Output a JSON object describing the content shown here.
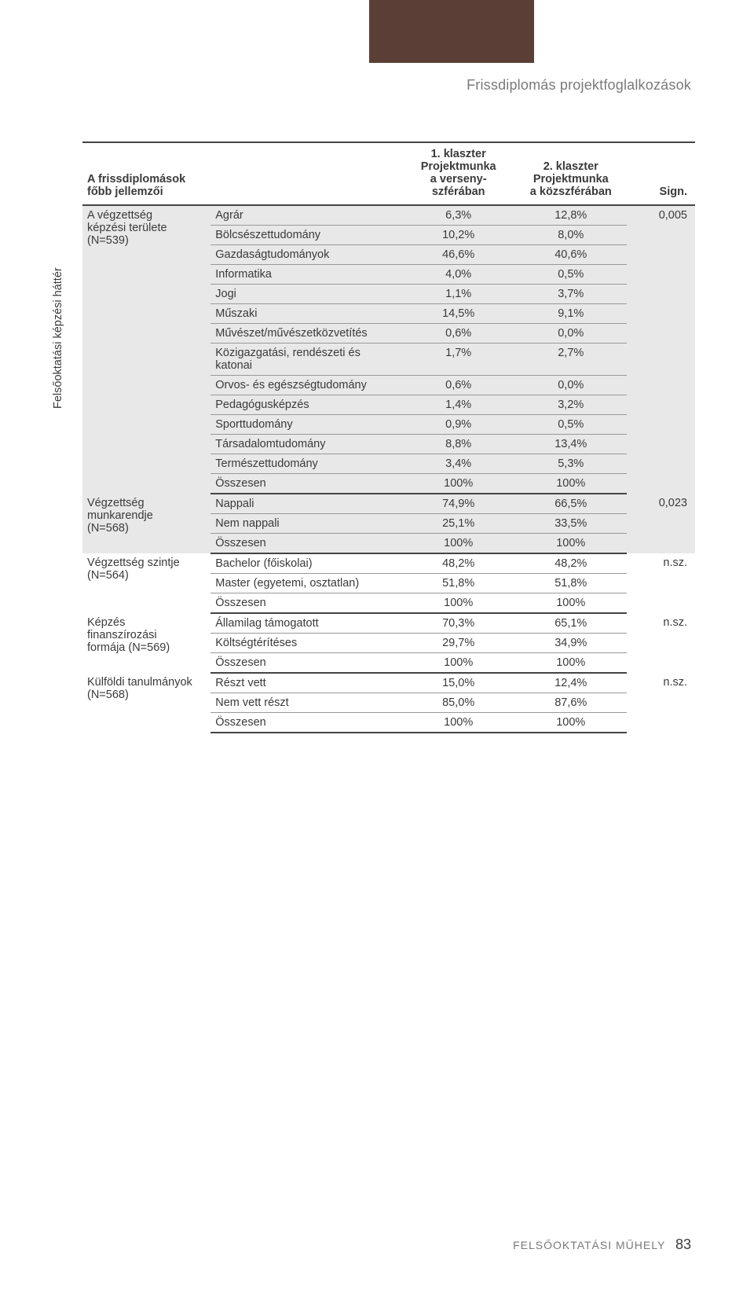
{
  "header": {
    "title": "Frissdiplomás projektfoglalkozások"
  },
  "vertical_label": "Felsőoktatási képzési háttér",
  "table": {
    "title": "A frissdiplomások főbb jellemzői",
    "cols": {
      "c3_line1": "1. klaszter",
      "c3_line2": "Projektmunka",
      "c3_line3": "a verseny-",
      "c3_line4": "szférában",
      "c4_line1": "2. klaszter",
      "c4_line2": "Projektmunka",
      "c4_line3": "a közszférában",
      "c5": "Sign."
    },
    "groups": [
      {
        "label_lines": [
          "A végzettség",
          "képzési területe",
          "(N=539)"
        ],
        "sign": "0,005",
        "shaded": true,
        "rows": [
          {
            "name": "Agrár",
            "v1": "6,3%",
            "v2": "12,8%"
          },
          {
            "name": "Bölcsészettudomány",
            "v1": "10,2%",
            "v2": "8,0%"
          },
          {
            "name": "Gazdaságtudományok",
            "v1": "46,6%",
            "v2": "40,6%"
          },
          {
            "name": "Informatika",
            "v1": "4,0%",
            "v2": "0,5%"
          },
          {
            "name": "Jogi",
            "v1": "1,1%",
            "v2": "3,7%"
          },
          {
            "name": "Műszaki",
            "v1": "14,5%",
            "v2": "9,1%"
          },
          {
            "name": "Művészet/művészetközvetítés",
            "v1": "0,6%",
            "v2": "0,0%"
          },
          {
            "name": "Közigazgatási, rendészeti és katonai",
            "v1": "1,7%",
            "v2": "2,7%"
          },
          {
            "name": "Orvos- és egészségtudomány",
            "v1": "0,6%",
            "v2": "0,0%"
          },
          {
            "name": "Pedagógusképzés",
            "v1": "1,4%",
            "v2": "3,2%"
          },
          {
            "name": "Sporttudomány",
            "v1": "0,9%",
            "v2": "0,5%"
          },
          {
            "name": "Társadalomtudomány",
            "v1": "8,8%",
            "v2": "13,4%"
          },
          {
            "name": "Természettudomány",
            "v1": "3,4%",
            "v2": "5,3%"
          },
          {
            "name": "Összesen",
            "v1": "100%",
            "v2": "100%"
          }
        ]
      },
      {
        "label_lines": [
          "Végzettség",
          "munkarendje",
          "(N=568)"
        ],
        "sign": "0,023",
        "shaded": true,
        "rows": [
          {
            "name": "Nappali",
            "v1": "74,9%",
            "v2": "66,5%"
          },
          {
            "name": "Nem nappali",
            "v1": "25,1%",
            "v2": "33,5%"
          },
          {
            "name": "Összesen",
            "v1": "100%",
            "v2": "100%"
          }
        ]
      },
      {
        "label_lines": [
          "Végzettség szintje",
          "(N=564)"
        ],
        "sign": "n.sz.",
        "shaded": false,
        "rows": [
          {
            "name": "Bachelor (főiskolai)",
            "v1": "48,2%",
            "v2": "48,2%"
          },
          {
            "name": "Master (egyetemi, osztatlan)",
            "v1": "51,8%",
            "v2": "51,8%"
          },
          {
            "name": "Összesen",
            "v1": "100%",
            "v2": "100%"
          }
        ]
      },
      {
        "label_lines": [
          "Képzés",
          "finanszírozási",
          "formája (N=569)"
        ],
        "sign": "n.sz.",
        "shaded": false,
        "rows": [
          {
            "name": "Államilag támogatott",
            "v1": "70,3%",
            "v2": "65,1%"
          },
          {
            "name": "Költségtérítéses",
            "v1": "29,7%",
            "v2": "34,9%"
          },
          {
            "name": "Összesen",
            "v1": "100%",
            "v2": "100%"
          }
        ]
      },
      {
        "label_lines": [
          "Külföldi tanulmányok",
          "(N=568)"
        ],
        "sign": "n.sz.",
        "shaded": false,
        "rows": [
          {
            "name": "Részt vett",
            "v1": "15,0%",
            "v2": "12,4%"
          },
          {
            "name": "Nem vett részt",
            "v1": "85,0%",
            "v2": "87,6%"
          },
          {
            "name": "Összesen",
            "v1": "100%",
            "v2": "100%"
          }
        ]
      }
    ]
  },
  "footer": {
    "text": "FELSŐOKTATÁSI MŰHELY",
    "page": "83"
  },
  "colors": {
    "block": "#5b3f36",
    "shade": "#e8e8e8",
    "rule_dark": "#444444",
    "rule_light": "#999999",
    "text": "#3a3a3a",
    "muted": "#7a7a7a",
    "background": "#ffffff"
  }
}
